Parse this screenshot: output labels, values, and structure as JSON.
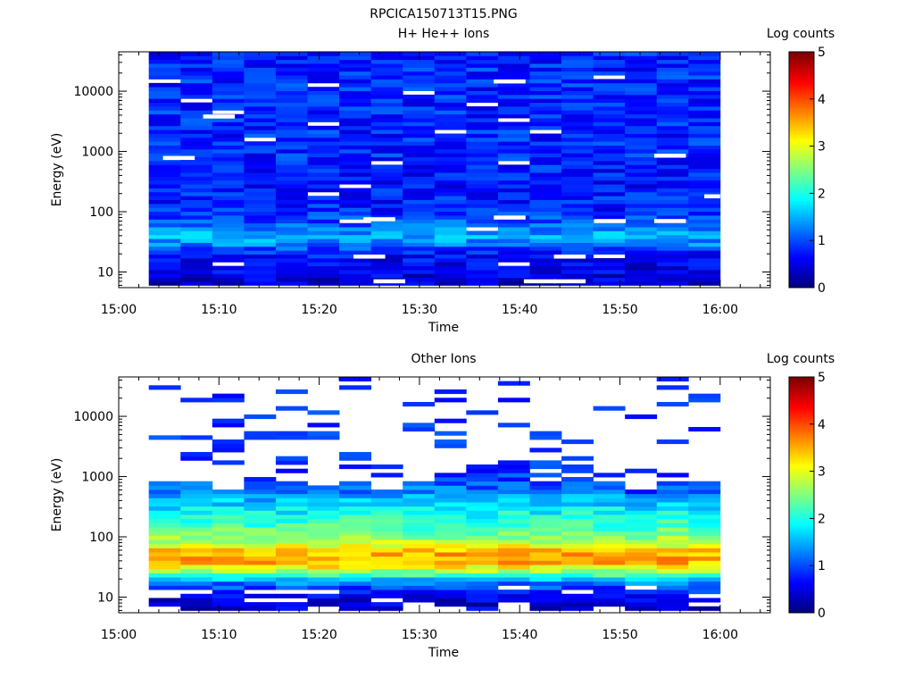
{
  "figure_title": "RPCICA150713T15.PNG",
  "chart_data": [
    {
      "type": "heatmap",
      "title": "H+ He++ Ions",
      "xlabel": "Time",
      "ylabel": "Energy (eV)",
      "x_ticks": [
        "15:00",
        "15:10",
        "15:20",
        "15:30",
        "15:40",
        "15:50",
        "16:00"
      ],
      "x_range": [
        "15:00",
        "16:05"
      ],
      "y_scale": "log",
      "y_ticks": [
        "10",
        "100",
        "1000",
        "10000"
      ],
      "y_range": [
        5.5,
        45000
      ],
      "colorbar": {
        "label": "Log counts",
        "range": [
          0,
          5
        ],
        "ticks": [
          "0",
          "1",
          "2",
          "3",
          "4",
          "5"
        ]
      },
      "time_bins": [
        "15:03",
        "15:06",
        "15:10",
        "15:13",
        "15:16",
        "15:19",
        "15:23",
        "15:26",
        "15:29",
        "15:32",
        "15:35",
        "15:39",
        "15:42",
        "15:45",
        "15:48",
        "15:51",
        "15:55",
        "15:58"
      ],
      "data_start": "15:03",
      "data_end": "16:00",
      "profile": {
        "energies_ev": [
          6,
          10,
          20,
          30,
          40,
          60,
          100,
          300,
          1000,
          10000,
          45000
        ],
        "log_counts": [
          0.4,
          0.5,
          0.7,
          1.3,
          1.5,
          1.1,
          0.8,
          0.7,
          0.8,
          0.8,
          0.8
        ]
      },
      "gap_fraction": 0.02,
      "gaps": [
        {
          "time": "15:10",
          "energy_ev": 3800
        },
        {
          "time": "15:06",
          "energy_ev": 780
        },
        {
          "time": "15:26",
          "energy_ev": 75
        },
        {
          "time": "15:25",
          "energy_ev": 18
        },
        {
          "time": "15:27",
          "energy_ev": 7
        },
        {
          "time": "15:39",
          "energy_ev": 80
        },
        {
          "time": "15:39",
          "energy_ev": 14500
        },
        {
          "time": "15:42",
          "energy_ev": 7
        },
        {
          "time": "15:45",
          "energy_ev": 7
        },
        {
          "time": "15:45",
          "energy_ev": 18
        },
        {
          "time": "15:49",
          "energy_ev": 70
        },
        {
          "time": "15:55",
          "energy_ev": 70
        },
        {
          "time": "15:55",
          "energy_ev": 850
        },
        {
          "time": "16:00",
          "energy_ev": 180
        }
      ]
    },
    {
      "type": "heatmap",
      "title": "Other Ions",
      "xlabel": "Time",
      "ylabel": "Energy (eV)",
      "x_ticks": [
        "15:00",
        "15:10",
        "15:20",
        "15:30",
        "15:40",
        "15:50",
        "16:00"
      ],
      "x_range": [
        "15:00",
        "16:05"
      ],
      "y_scale": "log",
      "y_ticks": [
        "10",
        "100",
        "1000",
        "10000"
      ],
      "y_range": [
        5.5,
        45000
      ],
      "colorbar": {
        "label": "Log counts",
        "range": [
          0,
          5
        ],
        "ticks": [
          "0",
          "1",
          "2",
          "3",
          "4",
          "5"
        ]
      },
      "time_bins": [
        "15:03",
        "15:06",
        "15:10",
        "15:13",
        "15:16",
        "15:19",
        "15:23",
        "15:26",
        "15:29",
        "15:32",
        "15:35",
        "15:39",
        "15:42",
        "15:45",
        "15:48",
        "15:51",
        "15:55",
        "15:58"
      ],
      "data_start": "15:03",
      "data_end": "16:00",
      "profile": {
        "energies_ev": [
          6,
          10,
          18,
          22,
          26,
          30,
          40,
          55,
          80,
          150,
          300,
          600,
          1200,
          45000
        ],
        "log_counts": [
          0.4,
          0.5,
          1.3,
          2.0,
          2.5,
          3.0,
          3.6,
          3.5,
          2.8,
          2.2,
          1.8,
          1.2,
          0.8,
          0.6
        ]
      },
      "coverage_top_ev": [
        900,
        800,
        650,
        800,
        900,
        700,
        800,
        650,
        900,
        950,
        1500,
        1800,
        800,
        1000,
        800,
        550,
        800,
        800
      ],
      "high_energy_lines_fraction": 0.15
    }
  ]
}
